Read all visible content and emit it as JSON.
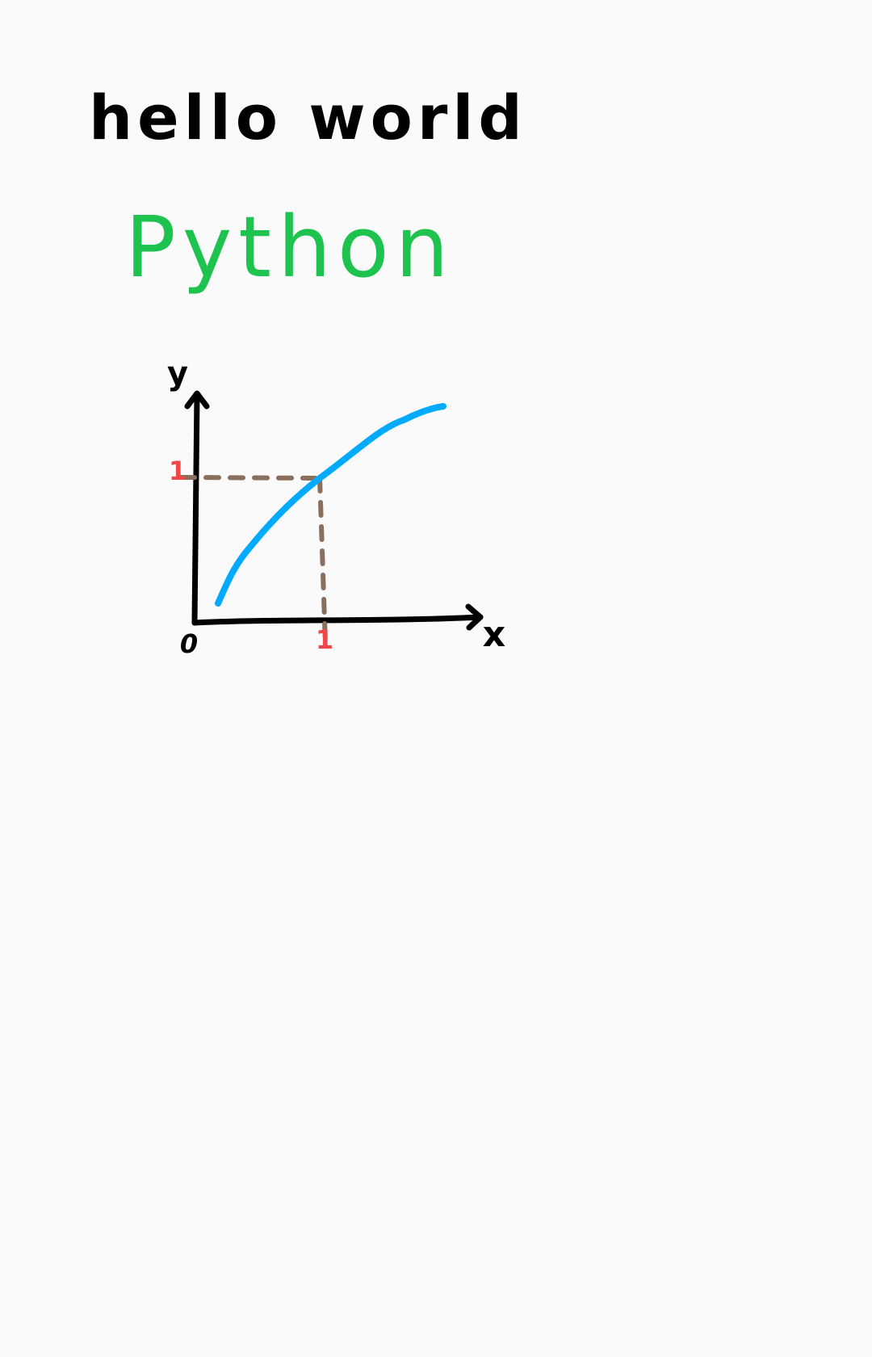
{
  "notes": {
    "line1": "hello world",
    "line2": "Python"
  },
  "sketch": {
    "y_axis_label": "y",
    "x_axis_label": "x",
    "origin_label": "0",
    "x_tick_label": "1",
    "y_tick_label": "1"
  }
}
